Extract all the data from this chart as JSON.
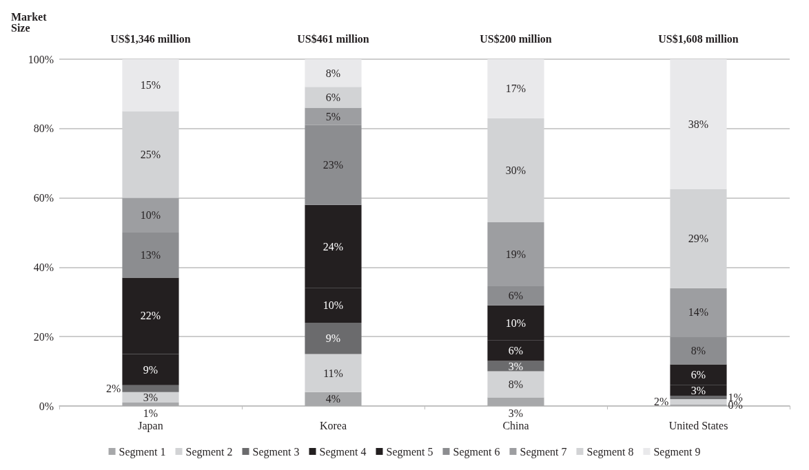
{
  "chart_data": {
    "type": "bar",
    "stacked": true,
    "categories": [
      "Japan",
      "Korea",
      "China",
      "United States"
    ],
    "annotations": [
      "Market Size",
      "US$1,346 million",
      "US$461 million",
      "US$200 million",
      "US$1,608 million"
    ],
    "series": [
      {
        "name": "Segment 1",
        "color": "#a7a8aa",
        "values": [
          1,
          4,
          2.5,
          0.4
        ],
        "value_labels": [
          "1%",
          "4%",
          "3%",
          "0%"
        ]
      },
      {
        "name": "Segment 2",
        "color": "#d2d3d5",
        "values": [
          3,
          11,
          7.5,
          1.6
        ],
        "value_labels": [
          "3%",
          "11%",
          "8%",
          "2%"
        ]
      },
      {
        "name": "Segment 3",
        "color": "#6b6b6d",
        "values": [
          2,
          9,
          3,
          1
        ],
        "value_labels": [
          "2%",
          "9%",
          "3%",
          "1%"
        ]
      },
      {
        "name": "Segment 4",
        "color": "#231f20",
        "values": [
          9,
          10,
          6,
          3
        ],
        "value_labels": [
          "9%",
          "10%",
          "6%",
          "3%"
        ]
      },
      {
        "name": "Segment 5",
        "color": "#231f20",
        "values": [
          22,
          24,
          10,
          6
        ],
        "value_labels": [
          "22%",
          "24%",
          "10%",
          "6%"
        ]
      },
      {
        "name": "Segment 6",
        "color": "#8c8d90",
        "values": [
          13,
          23,
          5.5,
          8
        ],
        "value_labels": [
          "13%",
          "23%",
          "6%",
          "8%"
        ]
      },
      {
        "name": "Segment 7",
        "color": "#9d9ea1",
        "values": [
          10,
          5,
          18.5,
          14
        ],
        "value_labels": [
          "10%",
          "5%",
          "19%",
          "14%"
        ]
      },
      {
        "name": "Segment 8",
        "color": "#d2d3d5",
        "values": [
          25,
          6,
          30,
          28.5
        ],
        "value_labels": [
          "25%",
          "6%",
          "30%",
          "29%"
        ]
      },
      {
        "name": "Segment 9",
        "color": "#e9e9eb",
        "values": [
          15,
          8,
          17,
          37.5
        ],
        "value_labels": [
          "15%",
          "8%",
          "17%",
          "38%"
        ]
      }
    ],
    "ylim": [
      0,
      100
    ],
    "yticks": [
      {
        "value": 0,
        "label": "0%"
      },
      {
        "value": 20,
        "label": "20%"
      },
      {
        "value": 40,
        "label": "40%"
      },
      {
        "value": 60,
        "label": "60%"
      },
      {
        "value": 80,
        "label": "80%"
      },
      {
        "value": 100,
        "label": "100%"
      }
    ],
    "grid": "y",
    "legend": "bottom"
  }
}
